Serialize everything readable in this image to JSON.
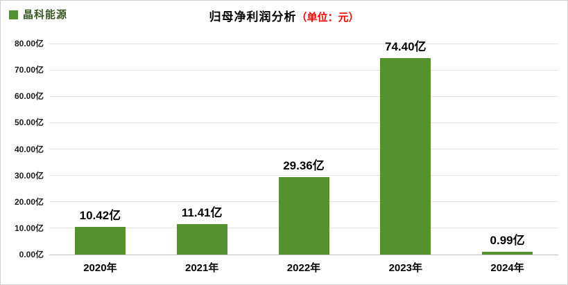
{
  "header": {
    "legend_label": "晶科能源",
    "title_main": "归母净利润分析",
    "title_unit": "（单位：元）"
  },
  "colors": {
    "bar": "#56912F",
    "legend_text": "#375623",
    "title_unit_text": "#FF0000",
    "gridline": "#E3E3E3",
    "axis_line": "#BDBDBD",
    "background": "#FFFFFF",
    "frame_border": "#CFCFCF"
  },
  "chart_data": {
    "type": "bar",
    "title": "归母净利润分析（单位：元）",
    "series_name": "晶科能源",
    "categories": [
      "2020年",
      "2021年",
      "2022年",
      "2023年",
      "2024年"
    ],
    "values": [
      10.42,
      11.41,
      29.36,
      74.4,
      0.99
    ],
    "value_labels": [
      "10.42亿",
      "11.41亿",
      "29.36亿",
      "74.40亿",
      "0.99亿"
    ],
    "unit": "亿",
    "xlabel": "",
    "ylabel": "",
    "ylim": [
      0,
      80
    ],
    "ytick_step": 10,
    "ytick_labels": [
      "0.00亿",
      "10.00亿",
      "20.00亿",
      "30.00亿",
      "40.00亿",
      "50.00亿",
      "60.00亿",
      "70.00亿",
      "80.00亿"
    ],
    "grid": true,
    "legend_position": "top-left",
    "bar_color": "#56912F"
  }
}
